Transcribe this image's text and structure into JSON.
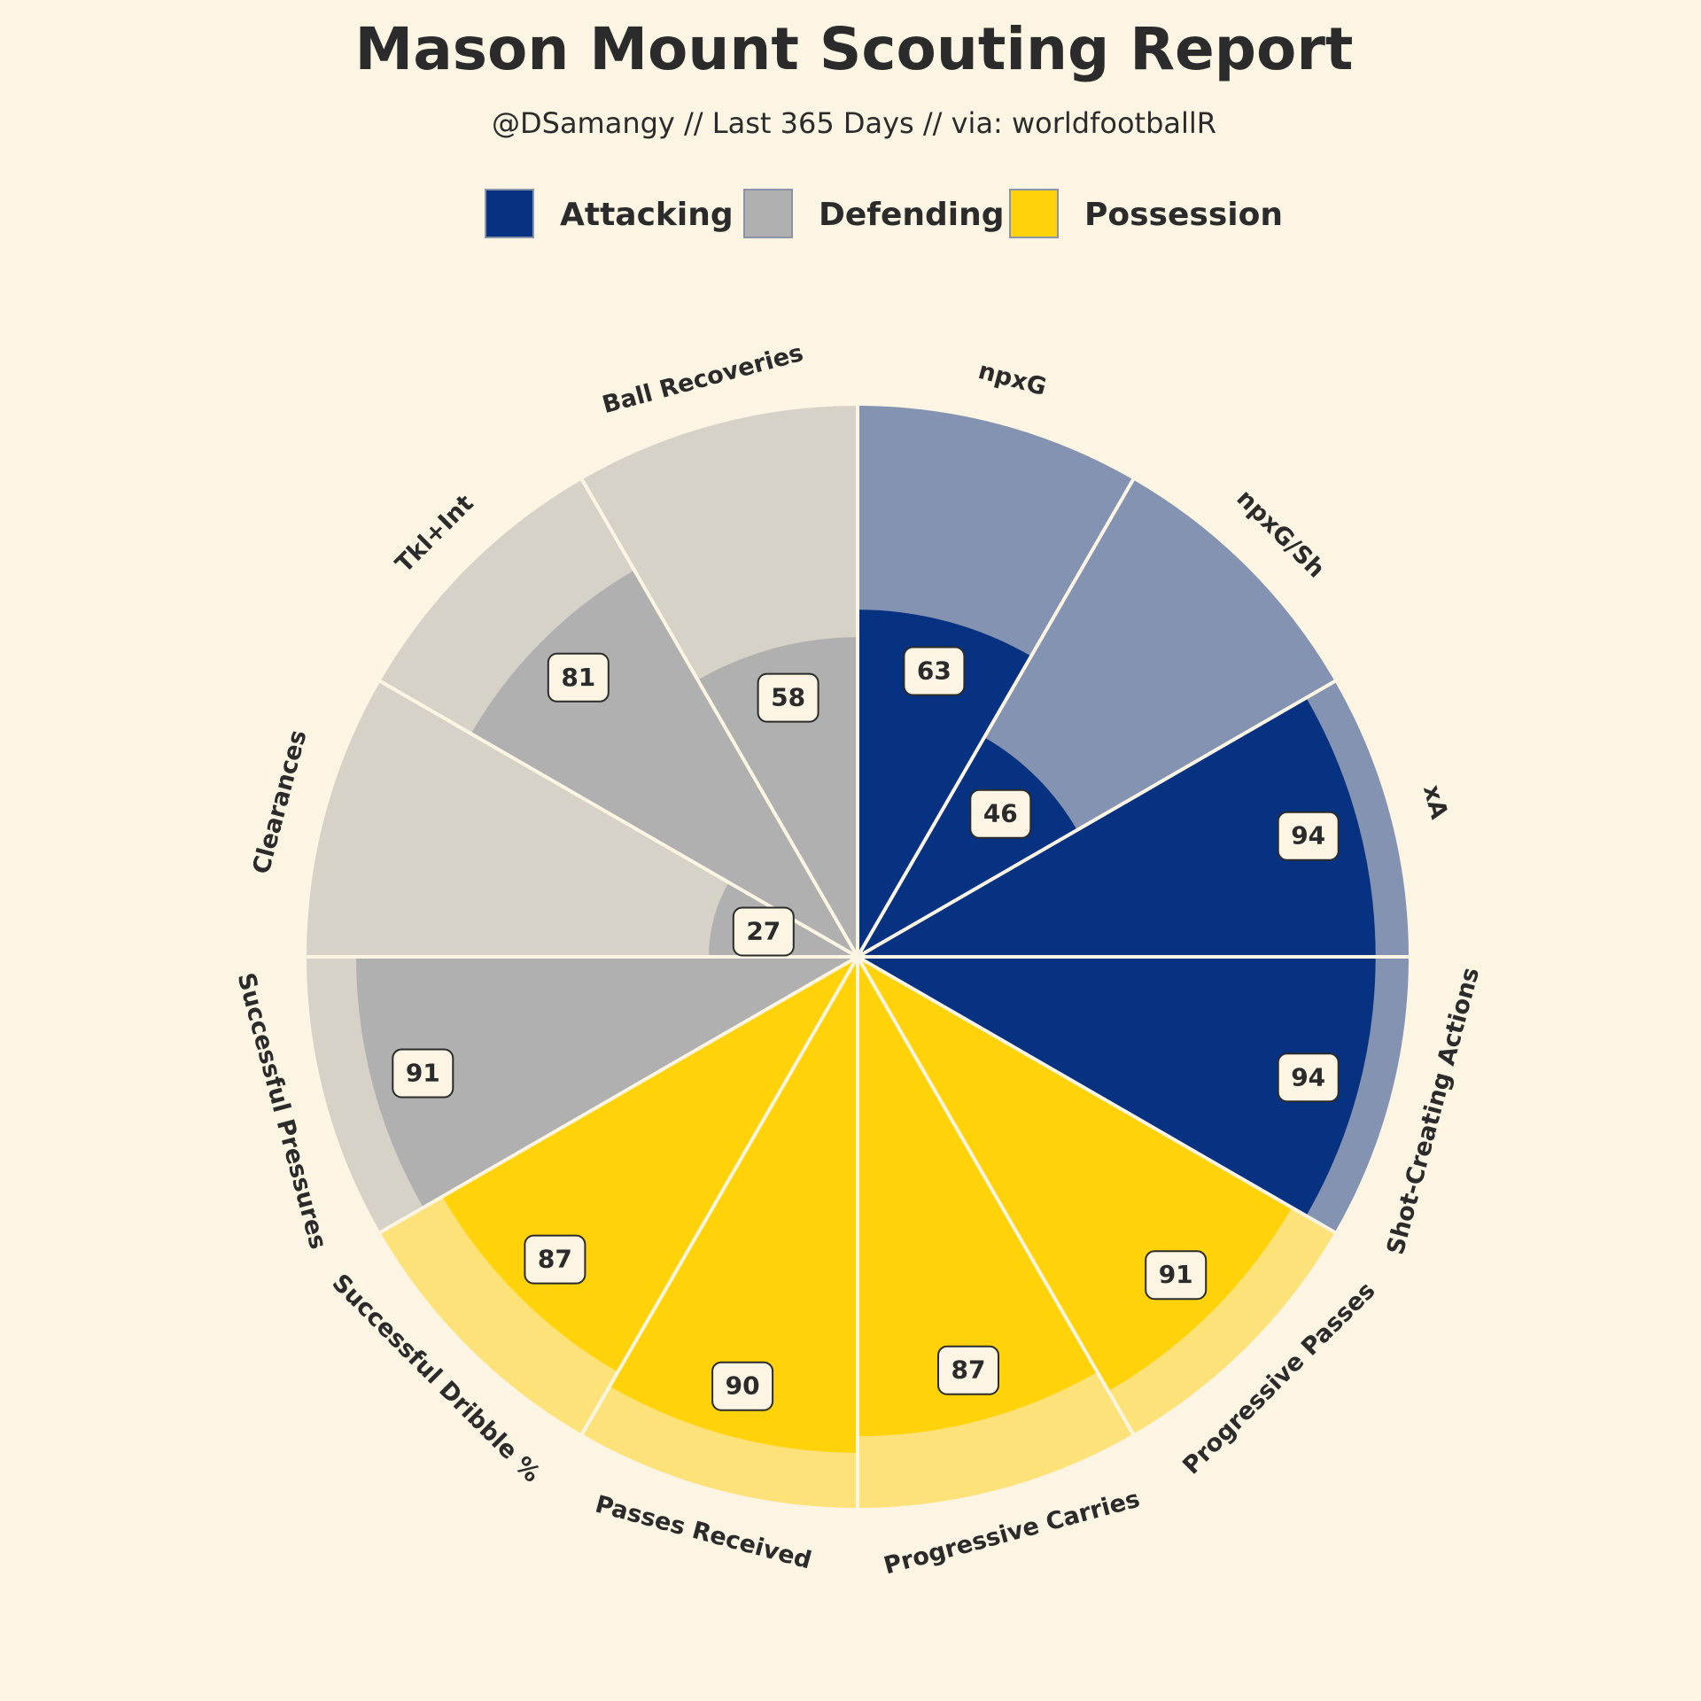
{
  "chart_data": {
    "type": "polar-bar",
    "title": "Mason Mount Scouting Report",
    "subtitle": "@DSamangy // Last 365 Days // via: worldfootballR",
    "legend": {
      "placement": "top",
      "entries": [
        {
          "name": "Attacking",
          "color": "#073282"
        },
        {
          "name": "Defending",
          "color": "#b0b0b0"
        },
        {
          "name": "Possession",
          "color": "#ffd209"
        }
      ]
    },
    "background_colors": {
      "Attacking": "#8393b1",
      "Defending": "#d6d2c7",
      "Possession": "#fde27a"
    },
    "value_range": [
      0,
      100
    ],
    "metrics": [
      {
        "label": "npxG",
        "value": 63,
        "group": "Attacking"
      },
      {
        "label": "npxG/Sh",
        "value": 46,
        "group": "Attacking"
      },
      {
        "label": "xA",
        "value": 94,
        "group": "Attacking"
      },
      {
        "label": "Shot-Creating Actions",
        "value": 94,
        "group": "Attacking"
      },
      {
        "label": "Progressive Passes",
        "value": 91,
        "group": "Possession"
      },
      {
        "label": "Progressive Carries",
        "value": 87,
        "group": "Possession"
      },
      {
        "label": "Passes Received",
        "value": 90,
        "group": "Possession"
      },
      {
        "label": "Successful Dribble %",
        "value": 87,
        "group": "Possession"
      },
      {
        "label": "Successful Pressures",
        "value": 91,
        "group": "Defending"
      },
      {
        "label": "Clearances",
        "value": 27,
        "group": "Defending"
      },
      {
        "label": "Tkl+Int",
        "value": 81,
        "group": "Defending"
      },
      {
        "label": "Ball Recoveries",
        "value": 58,
        "group": "Defending"
      }
    ]
  }
}
